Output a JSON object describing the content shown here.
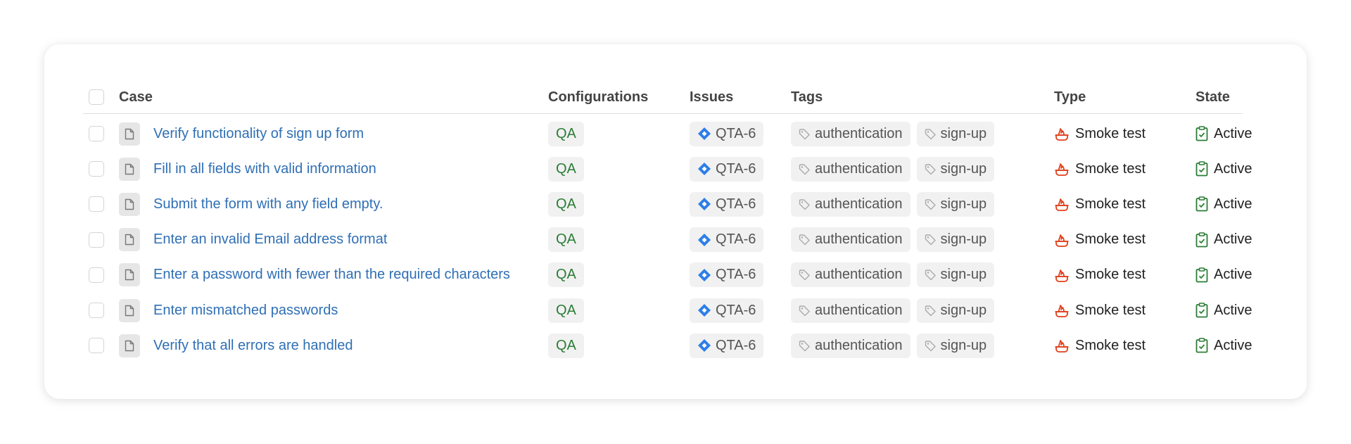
{
  "header": {
    "case": "Case",
    "configurations": "Configurations",
    "issues": "Issues",
    "tags": "Tags",
    "type": "Type",
    "state": "State"
  },
  "colors": {
    "link": "#2f6fb5",
    "config": "#2b7d36",
    "issue_icon": "#2d7ee8",
    "type_icon": "#e0401c",
    "state_icon": "#2b7d36"
  },
  "rows": [
    {
      "case": "Verify functionality of sign up form",
      "config": "QA",
      "issue": "QTA-6",
      "tags": [
        "authentication",
        "sign-up"
      ],
      "type": "Smoke test",
      "state": "Active"
    },
    {
      "case": "Fill in all fields with valid information",
      "config": "QA",
      "issue": "QTA-6",
      "tags": [
        "authentication",
        "sign-up"
      ],
      "type": "Smoke test",
      "state": "Active"
    },
    {
      "case": "Submit the form with any field empty.",
      "config": "QA",
      "issue": "QTA-6",
      "tags": [
        "authentication",
        "sign-up"
      ],
      "type": "Smoke test",
      "state": "Active"
    },
    {
      "case": "Enter an invalid Email address format",
      "config": "QA",
      "issue": "QTA-6",
      "tags": [
        "authentication",
        "sign-up"
      ],
      "type": "Smoke test",
      "state": "Active"
    },
    {
      "case": "Enter a password with fewer than the required characters",
      "config": "QA",
      "issue": "QTA-6",
      "tags": [
        "authentication",
        "sign-up"
      ],
      "type": "Smoke test",
      "state": "Active"
    },
    {
      "case": "Enter mismatched passwords",
      "config": "QA",
      "issue": "QTA-6",
      "tags": [
        "authentication",
        "sign-up"
      ],
      "type": "Smoke test",
      "state": "Active"
    },
    {
      "case": "Verify that all errors are handled",
      "config": "QA",
      "issue": "QTA-6",
      "tags": [
        "authentication",
        "sign-up"
      ],
      "type": "Smoke test",
      "state": "Active"
    }
  ]
}
